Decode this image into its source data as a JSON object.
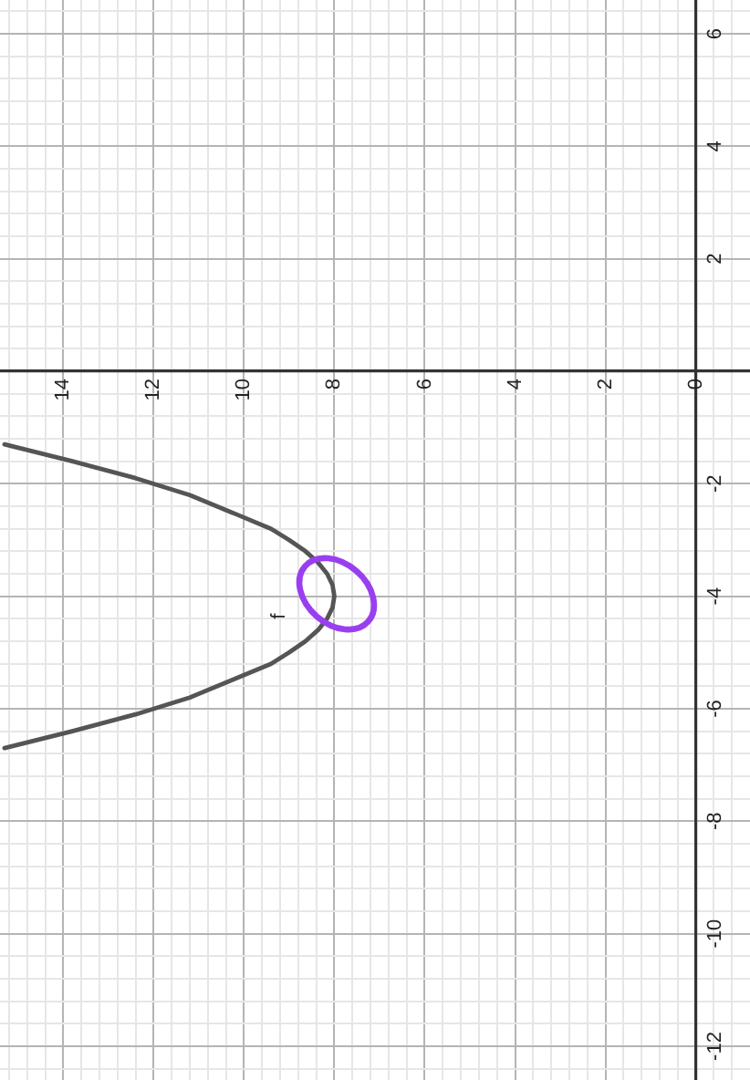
{
  "chart_data": {
    "type": "line",
    "series": [
      {
        "name": "f",
        "color": "#555555",
        "x": [
          15.3,
          13.8,
          12.4,
          11.2,
          10.3,
          9.4,
          9,
          8.64,
          8.36,
          8.16,
          8.04,
          8,
          8.04,
          8.16,
          8.36,
          8.64,
          9,
          9.4,
          10.3,
          11.2,
          12.4,
          13.8,
          15.3
        ],
        "values": [
          -1.3,
          -1.6,
          -1.9,
          -2.2,
          -2.5,
          -2.8,
          -3,
          -3.2,
          -3.4,
          -3.6,
          -3.8,
          -4,
          -4.2,
          -4.4,
          -4.6,
          -4.8,
          -5,
          -5.2,
          -5.5,
          -5.8,
          -6.1,
          -6.4,
          -6.7
        ]
      }
    ],
    "xlim": [
      15.4,
      -1.2
    ],
    "ylim": [
      -12.6,
      6.6
    ],
    "xticks": [
      {
        "value": 15.2,
        "label": null
      },
      {
        "value": 14.8,
        "label": null
      },
      {
        "value": 14.4,
        "label": null
      },
      14,
      {
        "value": 13.6,
        "label": null
      },
      {
        "value": 13.2,
        "label": null
      },
      {
        "value": 12.8,
        "label": null
      },
      {
        "value": 12.4,
        "label": null
      },
      12,
      {
        "value": 11.6,
        "label": null
      },
      {
        "value": 11.2,
        "label": null
      },
      {
        "value": 10.8,
        "label": null
      },
      {
        "value": 10.4,
        "label": null
      },
      10,
      {
        "value": 9.6,
        "label": null
      },
      {
        "value": 9.2,
        "label": null
      },
      {
        "value": 8.8,
        "label": null
      },
      {
        "value": 8.4,
        "label": null
      },
      8,
      {
        "value": 7.6,
        "label": null
      },
      {
        "value": 7.2,
        "label": null
      },
      {
        "value": 6.8,
        "label": null
      },
      {
        "value": 6.4,
        "label": null
      },
      6,
      {
        "value": 5.6,
        "label": null
      },
      {
        "value": 5.2,
        "label": null
      },
      {
        "value": 4.8,
        "label": null
      },
      {
        "value": 4.4,
        "label": null
      },
      4,
      {
        "value": 3.6,
        "label": null
      },
      {
        "value": 3.2,
        "label": null
      },
      {
        "value": 2.8,
        "label": null
      },
      {
        "value": 2.4,
        "label": null
      },
      2,
      {
        "value": 1.6,
        "label": null
      },
      {
        "value": 1.2,
        "label": null
      },
      {
        "value": 0.8,
        "label": null
      },
      {
        "value": 0.4,
        "label": null
      },
      0,
      {
        "value": -0.4,
        "label": null
      },
      {
        "value": -0.8,
        "label": null
      }
    ],
    "yticks": [
      {
        "value": -12.4,
        "label": null
      },
      -12,
      {
        "value": -11.6,
        "label": null
      },
      {
        "value": -11.2,
        "label": null
      },
      {
        "value": -10.8,
        "label": null
      },
      {
        "value": -10.4,
        "label": null
      },
      -10,
      {
        "value": -9.6,
        "label": null
      },
      {
        "value": -9.2,
        "label": null
      },
      {
        "value": -8.8,
        "label": null
      },
      {
        "value": -8.4,
        "label": null
      },
      -8,
      {
        "value": -7.6,
        "label": null
      },
      {
        "value": -7.2,
        "label": null
      },
      {
        "value": -6.8,
        "label": null
      },
      {
        "value": -6.4,
        "label": null
      },
      -6,
      {
        "value": -5.6,
        "label": null
      },
      {
        "value": -5.2,
        "label": null
      },
      {
        "value": -4.8,
        "label": null
      },
      {
        "value": -4.4,
        "label": null
      },
      -4,
      {
        "value": -3.6,
        "label": null
      },
      {
        "value": -3.2,
        "label": null
      },
      {
        "value": -2.8,
        "label": null
      },
      {
        "value": -2.4,
        "label": null
      },
      -2,
      {
        "value": -1.6,
        "label": null
      },
      {
        "value": -1.2,
        "label": null
      },
      {
        "value": -0.8,
        "label": null
      },
      {
        "value": -0.4,
        "label": null
      },
      {
        "value": 0.4,
        "label": null
      },
      {
        "value": 0.8,
        "label": null
      },
      {
        "value": 1.2,
        "label": null
      },
      {
        "value": 1.6,
        "label": null
      },
      2,
      {
        "value": 2.4,
        "label": null
      },
      {
        "value": 2.8,
        "label": null
      },
      {
        "value": 3.2,
        "label": null
      },
      {
        "value": 3.6,
        "label": null
      },
      4,
      {
        "value": 4.4,
        "label": null
      },
      {
        "value": 4.8,
        "label": null
      },
      {
        "value": 5.2,
        "label": null
      },
      {
        "value": 5.6,
        "label": null
      },
      6,
      {
        "value": 6.4,
        "label": null
      }
    ],
    "grid": true,
    "marker": "none",
    "line_style": "solid"
  }
}
